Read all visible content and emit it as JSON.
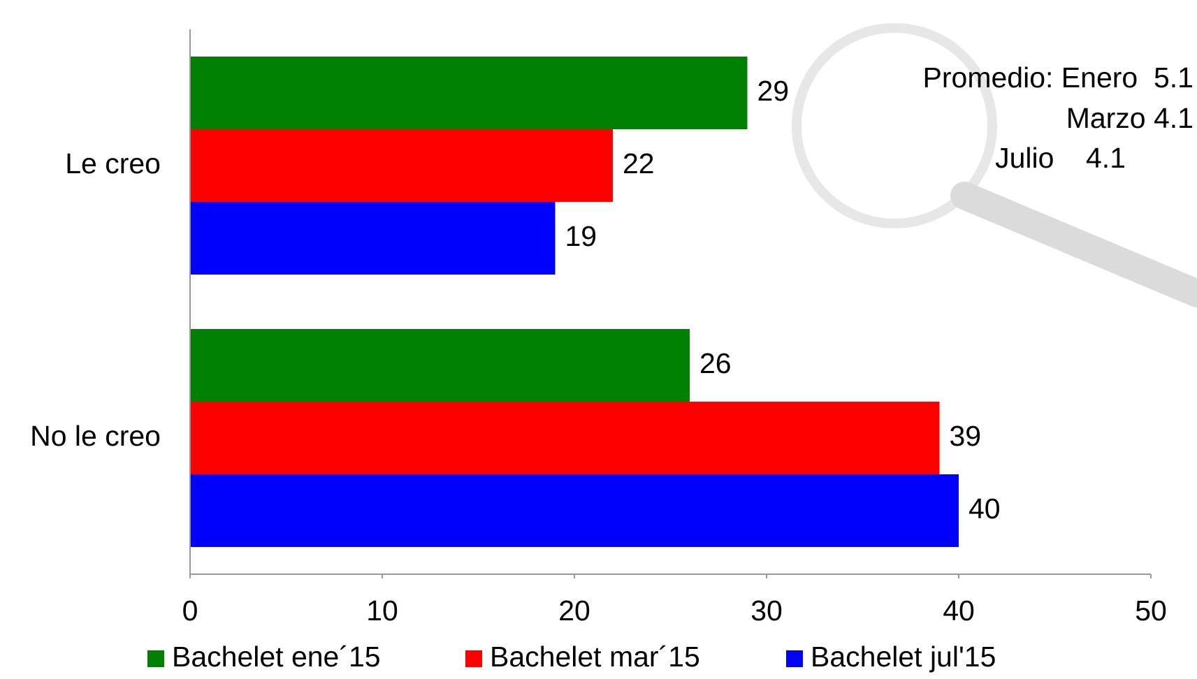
{
  "chart_data": {
    "type": "hbar",
    "categories": [
      "Le creo",
      "No le creo"
    ],
    "series": [
      {
        "name": "Bachelet ene´15",
        "color": "#008000",
        "values": [
          29,
          26
        ]
      },
      {
        "name": "Bachelet mar´15",
        "color": "#ff0000",
        "values": [
          22,
          39
        ]
      },
      {
        "name": "Bachelet jul'15",
        "color": "#0000ff",
        "values": [
          19,
          40
        ]
      }
    ],
    "xlim": [
      0,
      50
    ],
    "xticks": [
      0,
      10,
      20,
      30,
      40,
      50
    ],
    "annotations": [
      "Promedio: Enero  5.1",
      "Marzo 4.1",
      "Julio    4.1"
    ],
    "legend": "bottom",
    "grid": false
  }
}
